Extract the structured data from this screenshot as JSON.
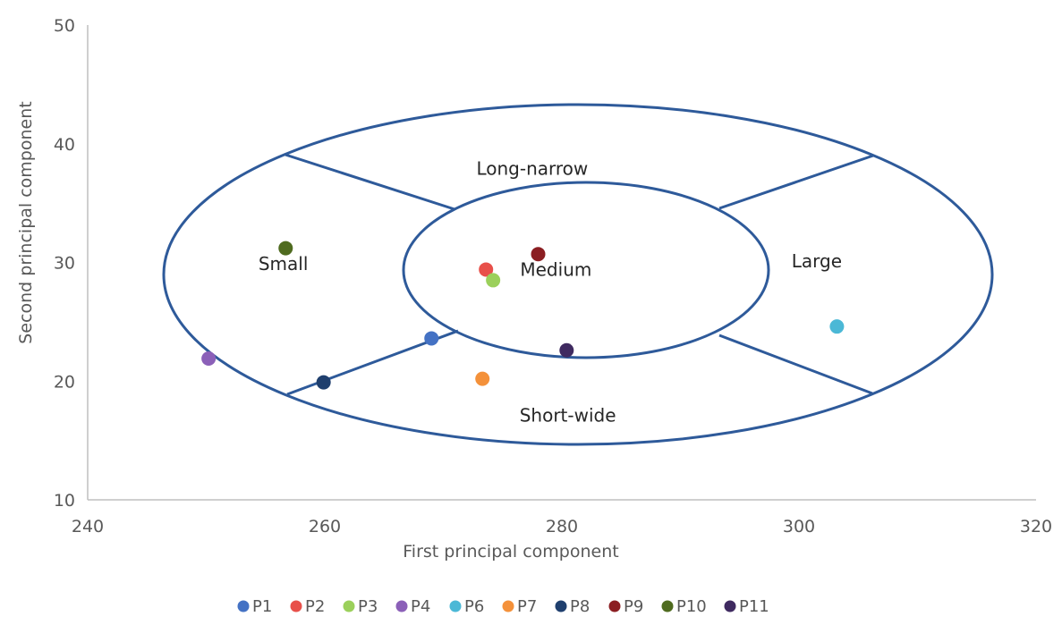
{
  "chart_data": {
    "type": "scatter",
    "title": "",
    "xlabel": "First principal component",
    "ylabel": "Second principal component",
    "xlim": [
      240,
      320
    ],
    "ylim": [
      10,
      50
    ],
    "x_ticks": [
      240,
      260,
      280,
      300,
      320
    ],
    "y_ticks": [
      10,
      20,
      30,
      40,
      50
    ],
    "grid": false,
    "legend_position": "bottom",
    "series": [
      {
        "name": "P1",
        "color": "#4472c4",
        "points": [
          {
            "x": 269.0,
            "y": 23.6
          }
        ]
      },
      {
        "name": "P2",
        "color": "#e8504a",
        "points": [
          {
            "x": 273.6,
            "y": 29.4
          }
        ]
      },
      {
        "name": "P3",
        "color": "#9bd05b",
        "points": [
          {
            "x": 274.2,
            "y": 28.5
          }
        ]
      },
      {
        "name": "P4",
        "color": "#8b60b8",
        "points": [
          {
            "x": 250.2,
            "y": 21.9
          }
        ]
      },
      {
        "name": "P6",
        "color": "#4bb8d6",
        "points": [
          {
            "x": 303.2,
            "y": 24.6
          }
        ]
      },
      {
        "name": "P7",
        "color": "#f4913a",
        "points": [
          {
            "x": 273.3,
            "y": 20.2
          }
        ]
      },
      {
        "name": "P8",
        "color": "#1f3f6e",
        "points": [
          {
            "x": 259.9,
            "y": 19.9
          }
        ]
      },
      {
        "name": "P9",
        "color": "#8b1e22",
        "points": [
          {
            "x": 278.0,
            "y": 30.7
          }
        ]
      },
      {
        "name": "P10",
        "color": "#4f6b1f",
        "points": [
          {
            "x": 256.7,
            "y": 31.2
          }
        ]
      },
      {
        "name": "P11",
        "color": "#3f2a60",
        "points": [
          {
            "x": 280.4,
            "y": 22.6
          }
        ]
      }
    ],
    "annotations": [
      {
        "label": "Long-narrow",
        "x": 277.5,
        "y": 37.9
      },
      {
        "label": "Small",
        "x": 256.5,
        "y": 29.9
      },
      {
        "label": "Medium",
        "x": 279.5,
        "y": 29.4
      },
      {
        "label": "Large",
        "x": 301.5,
        "y": 30.1
      },
      {
        "label": "Short-wide",
        "x": 280.5,
        "y": 17.1
      }
    ],
    "region_color": "#2e5a9a"
  }
}
